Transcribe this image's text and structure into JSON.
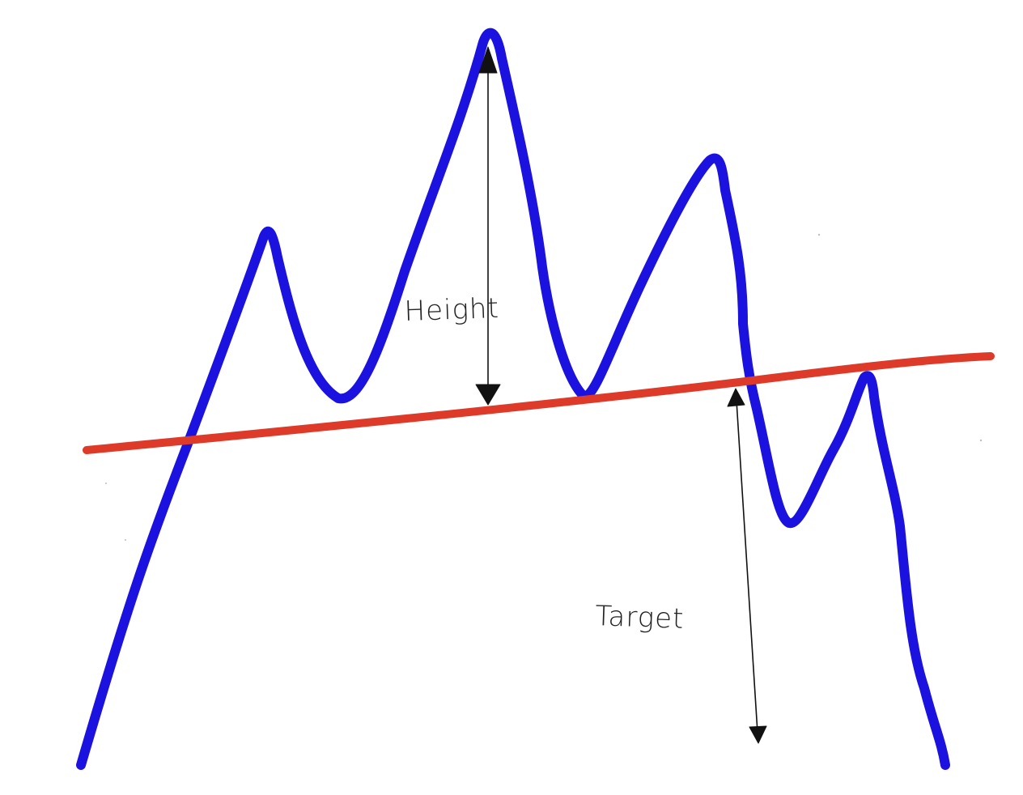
{
  "diagram": {
    "labels": {
      "height": "Height",
      "target": "Target"
    },
    "colors": {
      "background": "#ffffff",
      "price_line": "#1c12e0",
      "neckline": "#dd3a2a",
      "measure_lines": "#111111",
      "label_text": "#222222"
    }
  }
}
